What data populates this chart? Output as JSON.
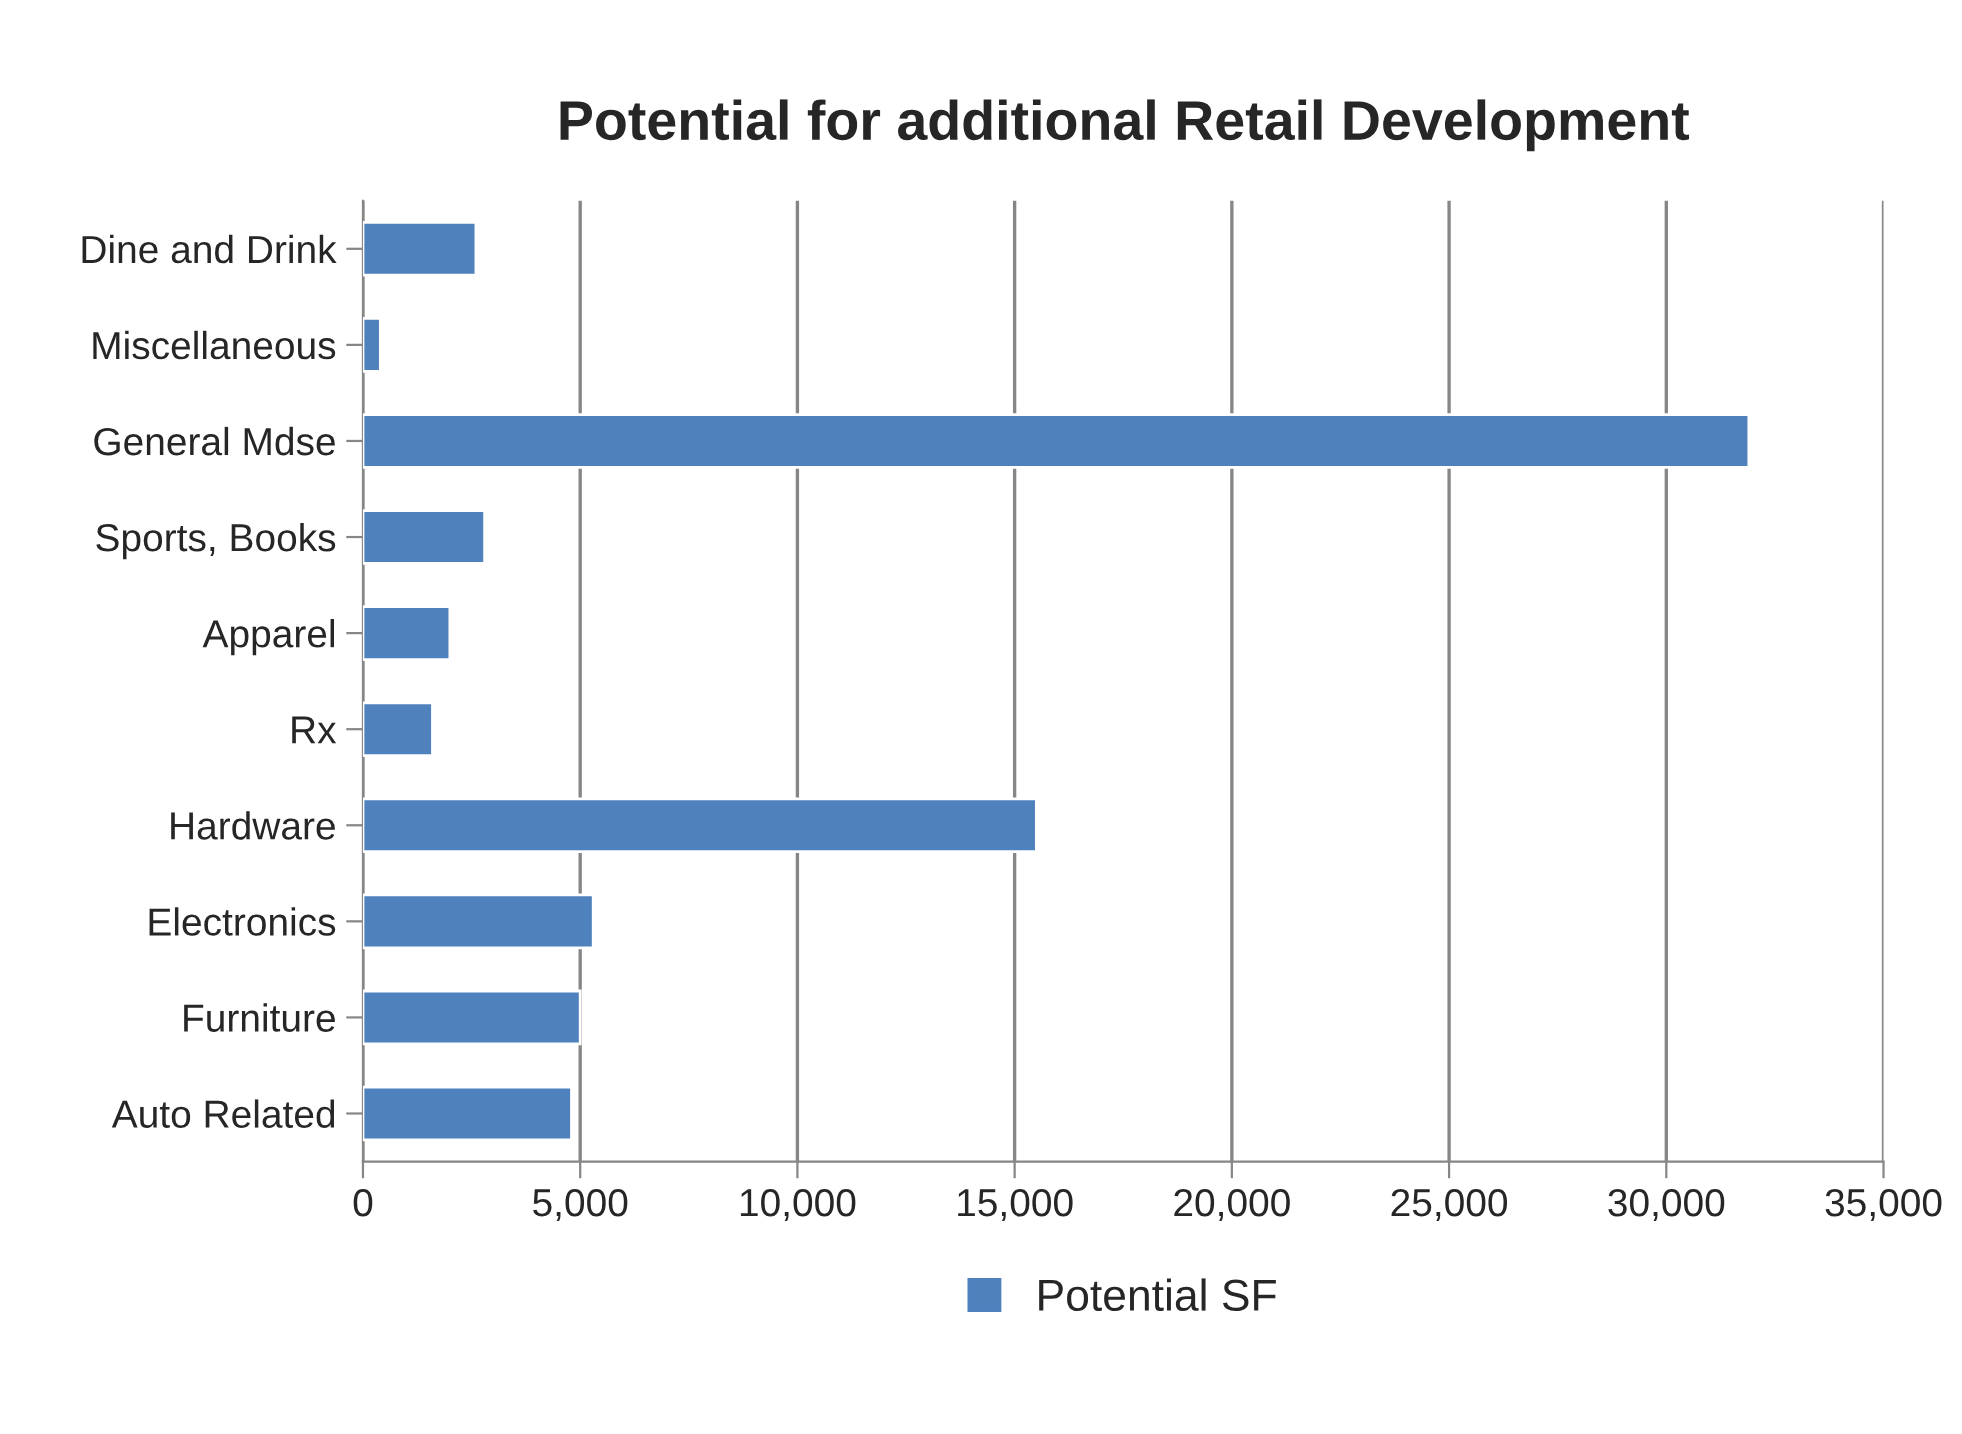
{
  "chart_data": {
    "type": "bar",
    "orientation": "horizontal",
    "title": "Potential for additional Retail Development",
    "categories": [
      "Dine and Drink",
      "Miscellaneous",
      "General Mdse",
      "Sports, Books",
      "Apparel",
      "Rx",
      "Hardware",
      "Electronics",
      "Furniture",
      "Auto Related"
    ],
    "series": [
      {
        "name": "Potential SF",
        "color": "#4f81bd",
        "values": [
          2600,
          400,
          31900,
          2800,
          2000,
          1600,
          15500,
          5300,
          5000,
          4800
        ]
      }
    ],
    "xlim": [
      0,
      35000
    ],
    "xticks": [
      0,
      {
        "value": 5000,
        "label": "5,000"
      },
      {
        "value": 10000,
        "label": "10,000"
      },
      {
        "value": 15000,
        "label": "15,000"
      },
      {
        "value": 20000,
        "label": "20,000"
      },
      {
        "value": 25000,
        "label": "25,000"
      },
      {
        "value": 30000,
        "label": "30,000"
      },
      {
        "value": 35000,
        "label": "35,000"
      }
    ],
    "grid": "x",
    "legend": "bottom"
  }
}
